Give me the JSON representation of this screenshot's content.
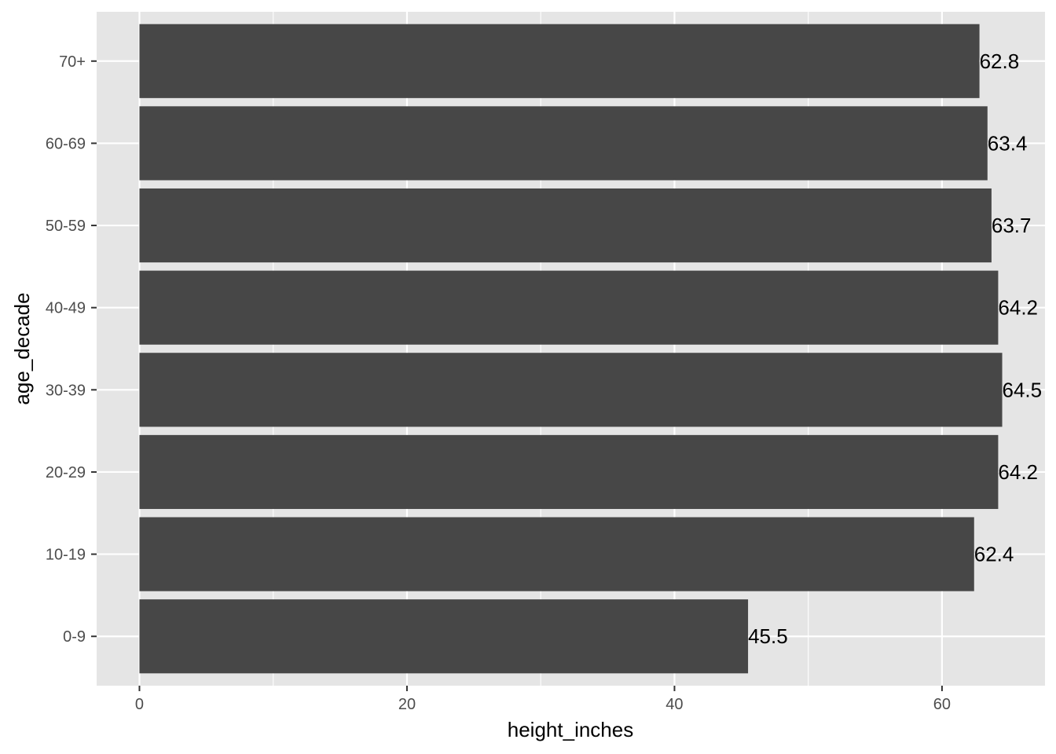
{
  "chart_data": {
    "type": "bar",
    "orientation": "horizontal",
    "categories": [
      "0-9",
      "10-19",
      "20-29",
      "30-39",
      "40-49",
      "50-59",
      "60-69",
      "70+"
    ],
    "values": [
      45.5,
      62.4,
      64.2,
      64.5,
      64.2,
      63.7,
      63.4,
      62.8
    ],
    "data_labels": [
      "45.5",
      "62.4",
      "64.2",
      "64.5",
      "64.2",
      "63.7",
      "63.4",
      "62.8"
    ],
    "title": "",
    "xlabel": "height_inches",
    "ylabel": "age_decade",
    "xlim": [
      -3.2,
      67.7
    ],
    "x_ticks": [
      0,
      20,
      40,
      60
    ],
    "x_tick_labels": [
      "0",
      "20",
      "40",
      "60"
    ],
    "grid": true,
    "legend": "none",
    "colors": {
      "bar": "#474747",
      "panel": "#e5e5e5",
      "grid_major": "#ffffff",
      "tick_text": "#4d4d4d",
      "text": "#000000"
    }
  }
}
